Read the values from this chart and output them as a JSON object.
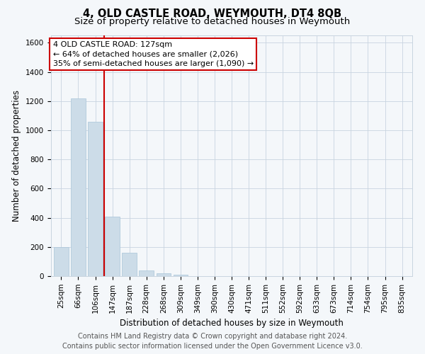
{
  "title": "4, OLD CASTLE ROAD, WEYMOUTH, DT4 8QB",
  "subtitle": "Size of property relative to detached houses in Weymouth",
  "xlabel": "Distribution of detached houses by size in Weymouth",
  "ylabel": "Number of detached properties",
  "categories": [
    "25sqm",
    "66sqm",
    "106sqm",
    "147sqm",
    "187sqm",
    "228sqm",
    "268sqm",
    "309sqm",
    "349sqm",
    "390sqm",
    "430sqm",
    "471sqm",
    "511sqm",
    "552sqm",
    "592sqm",
    "633sqm",
    "673sqm",
    "714sqm",
    "754sqm",
    "795sqm",
    "835sqm"
  ],
  "values": [
    200,
    1220,
    1060,
    410,
    160,
    40,
    20,
    12,
    0,
    0,
    0,
    0,
    0,
    0,
    0,
    0,
    0,
    0,
    0,
    0,
    0
  ],
  "bar_color": "#ccdce8",
  "bar_edge_color": "#a8c4d8",
  "vline_x": 2.5,
  "vline_color": "#cc0000",
  "annotation_text": "4 OLD CASTLE ROAD: 127sqm\n← 64% of detached houses are smaller (2,026)\n35% of semi-detached houses are larger (1,090) →",
  "annotation_box_color": "#ffffff",
  "annotation_border_color": "#cc0000",
  "ylim": [
    0,
    1650
  ],
  "yticks": [
    0,
    200,
    400,
    600,
    800,
    1000,
    1200,
    1400,
    1600
  ],
  "footer_line1": "Contains HM Land Registry data © Crown copyright and database right 2024.",
  "footer_line2": "Contains public sector information licensed under the Open Government Licence v3.0.",
  "bg_color": "#f4f7fa",
  "plot_bg_color": "#f4f7fa",
  "grid_color": "#c8d4e0",
  "title_fontsize": 10.5,
  "subtitle_fontsize": 9.5,
  "axis_label_fontsize": 8.5,
  "tick_fontsize": 7.5,
  "footer_fontsize": 7,
  "annotation_fontsize": 8
}
